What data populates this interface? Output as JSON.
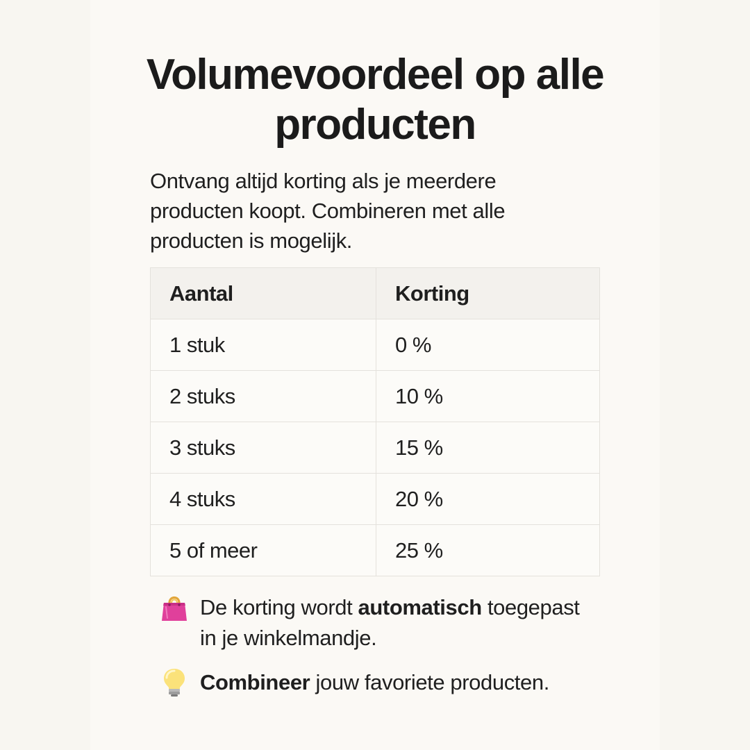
{
  "title": "Volumevoordeel op alle producten",
  "intro": "Ontvang altijd korting als je meerdere producten koopt. Combineren met alle producten is mogelijk.",
  "table": {
    "headers": [
      "Aantal",
      "Korting"
    ],
    "rows": [
      [
        "1 stuk",
        "0 %"
      ],
      [
        "2 stuks",
        "10 %"
      ],
      [
        "3 stuks",
        "15 %"
      ],
      [
        "4 stuks",
        "20 %"
      ],
      [
        "5 of meer",
        "25 %"
      ]
    ]
  },
  "notes": [
    {
      "icon": "shopping-bag-icon",
      "before": "De korting wordt ",
      "bold": "automatisch",
      "after": " toegepast in je winkelmandje."
    },
    {
      "icon": "light-bulb-icon",
      "before": "",
      "bold": "Combineer",
      "after": " jouw favoriete producten."
    }
  ],
  "colors": {
    "background": "#f8f6f1",
    "text": "#1c1c1c",
    "table_header": "#f3f1ed",
    "table_border": "#e4e1dc",
    "bag": "#e0409b"
  }
}
